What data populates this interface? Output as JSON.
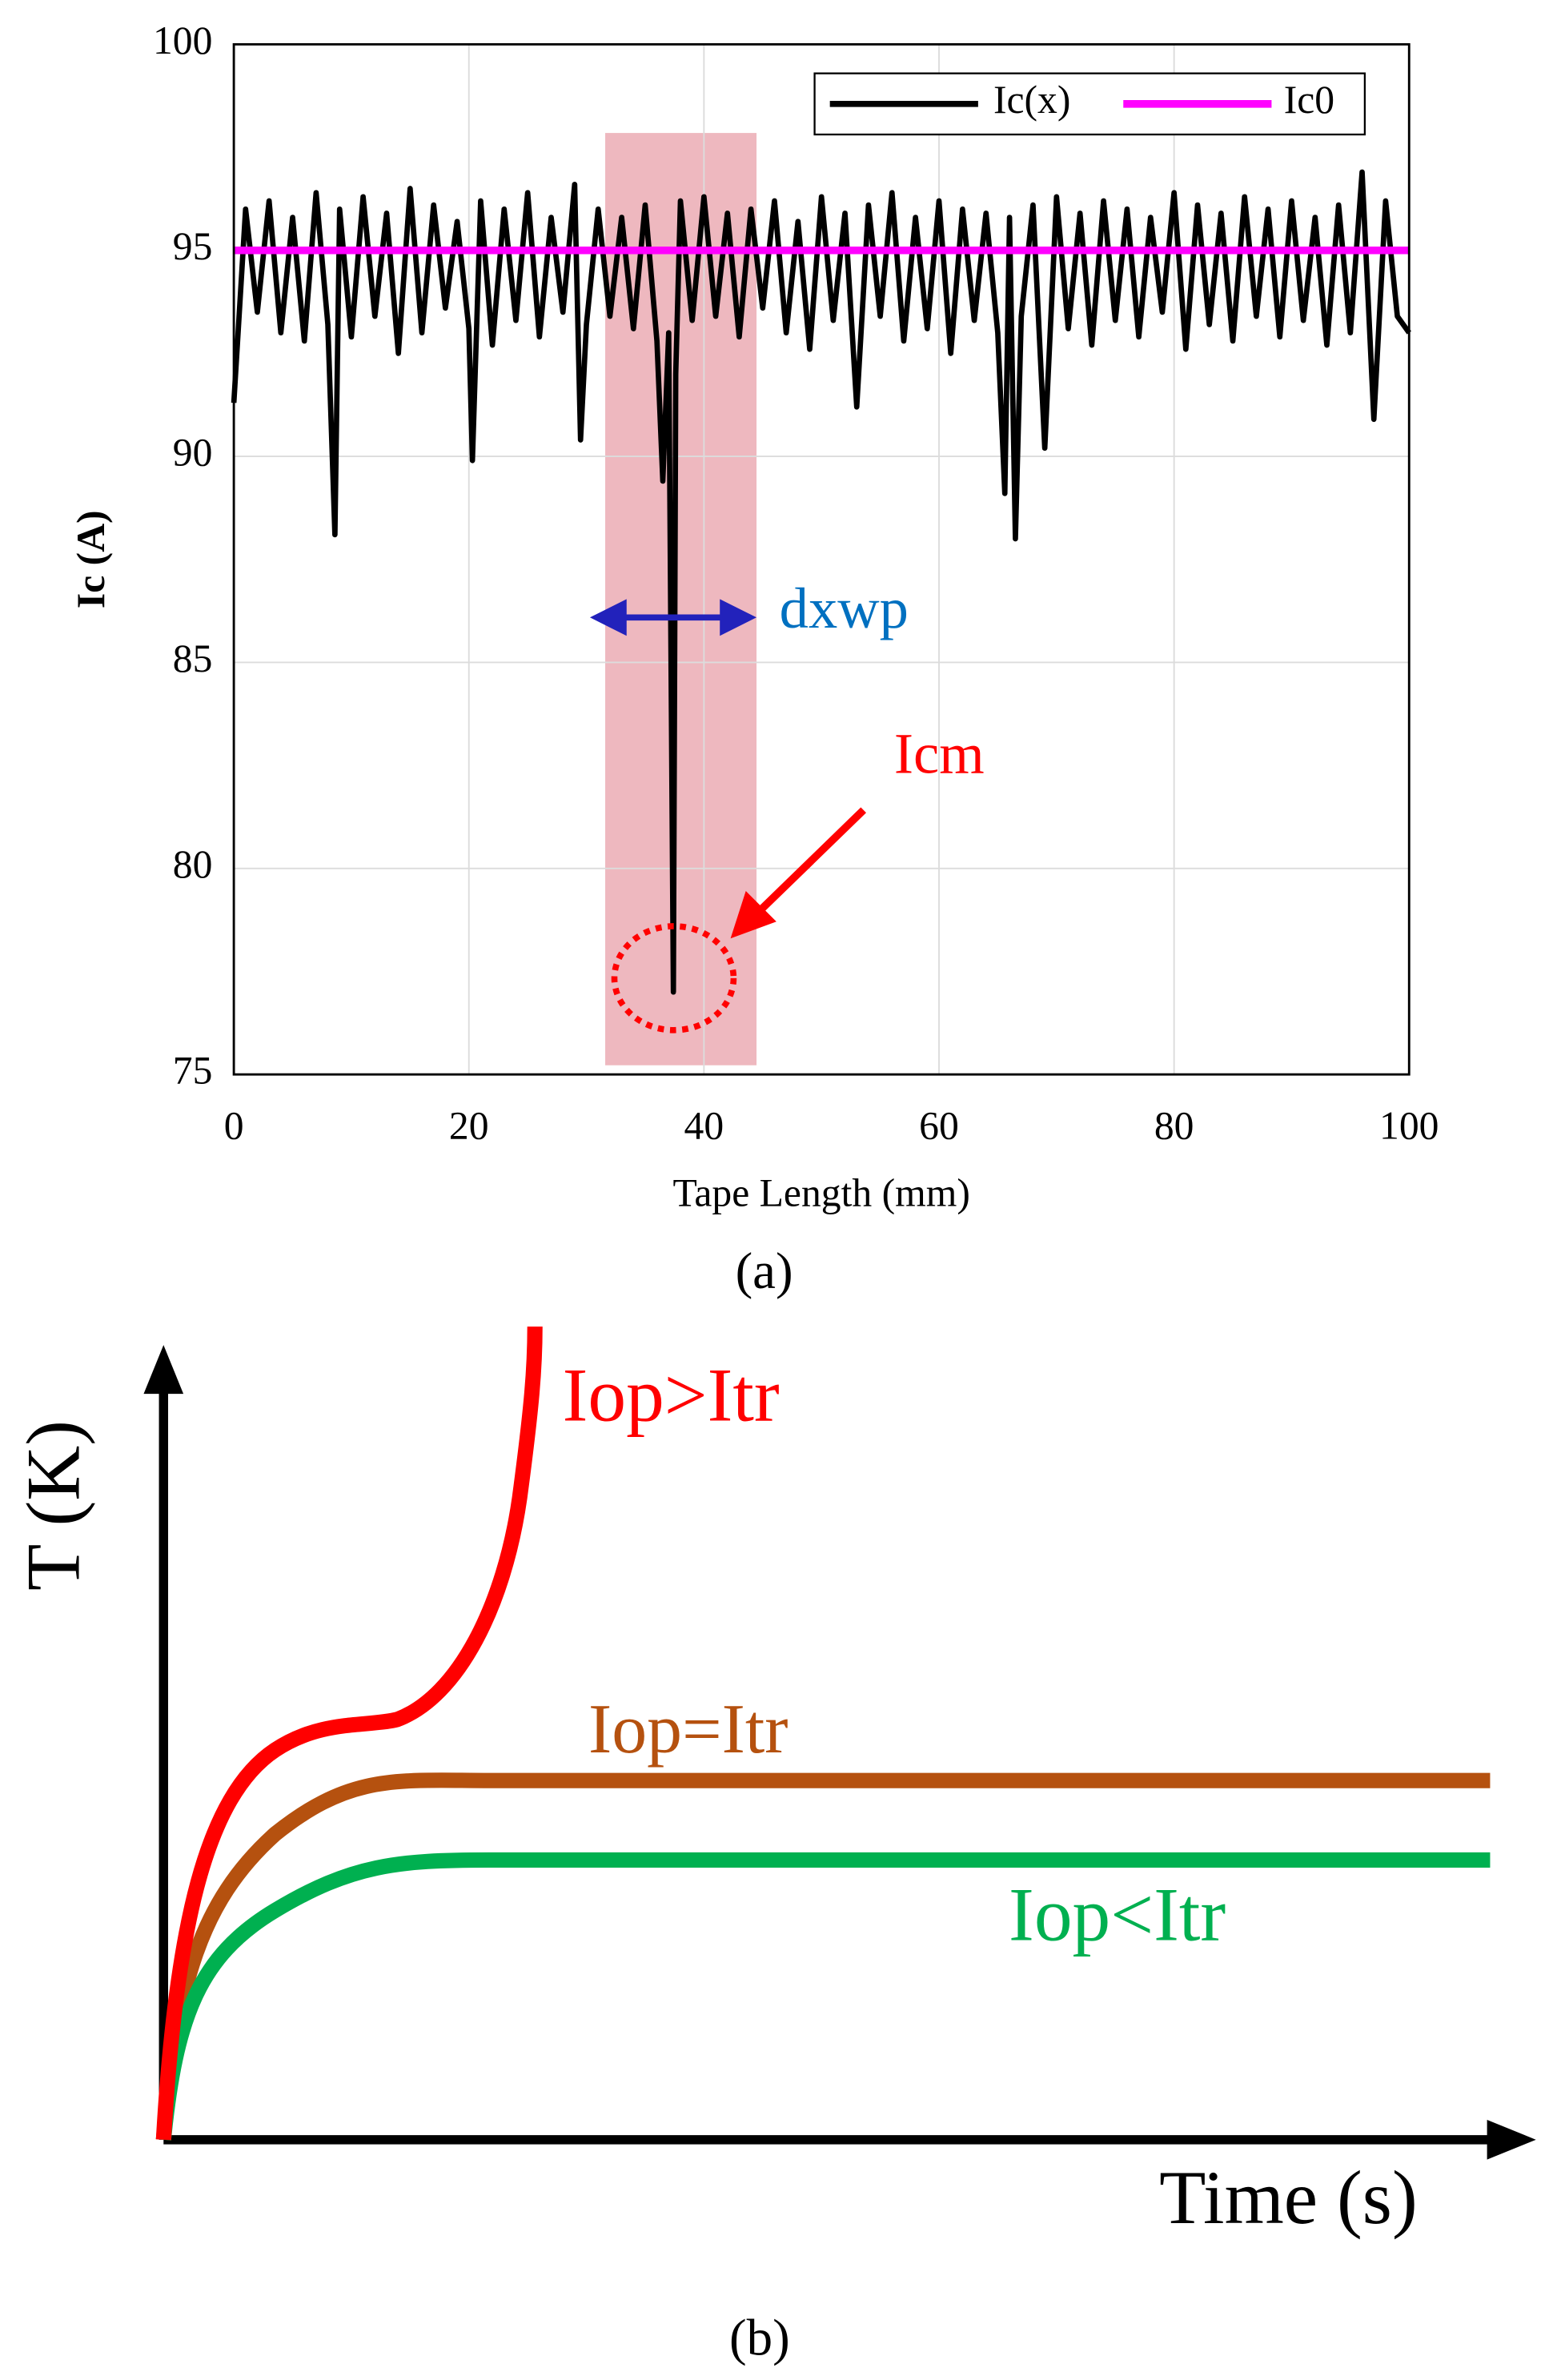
{
  "chart_data": {
    "type": "line",
    "xlabel": "Tape Length (mm)",
    "ylabel": "Ic (A)",
    "xlim": [
      0,
      100
    ],
    "ylim": [
      75,
      100
    ],
    "xticks": [
      0,
      20,
      40,
      60,
      80,
      100
    ],
    "yticks": [
      75,
      80,
      85,
      90,
      95,
      100
    ],
    "grid": true,
    "legend": "top-right",
    "series": [
      {
        "name": "Ic(x)",
        "color": "#000000",
        "x": [
          0,
          1,
          2,
          3,
          4,
          5,
          6,
          7,
          8,
          8.6,
          9,
          10,
          11,
          12,
          13,
          14,
          15,
          16,
          17,
          18,
          19,
          20,
          20.3,
          21,
          22,
          23,
          24,
          25,
          26,
          27,
          28,
          29,
          29.5,
          30,
          31,
          32,
          33,
          34,
          35,
          36,
          36.5,
          37,
          37.4,
          37.6,
          38,
          39,
          40,
          41,
          42,
          43,
          44,
          45,
          46,
          47,
          48,
          49,
          50,
          51,
          52,
          53,
          54,
          55,
          56,
          57,
          58,
          59,
          60,
          61,
          62,
          63,
          64,
          65,
          65.6,
          66,
          66.5,
          67,
          68,
          69,
          70,
          71,
          72,
          73,
          74,
          75,
          76,
          77,
          78,
          79,
          80,
          81,
          82,
          83,
          84,
          85,
          86,
          87,
          88,
          89,
          90,
          91,
          92,
          93,
          94,
          95,
          96,
          97,
          98,
          99,
          100
        ],
        "values": [
          91.3,
          96,
          93.5,
          96.2,
          93,
          95.8,
          92.8,
          96.4,
          93.2,
          88.1,
          96,
          92.9,
          96.3,
          93.4,
          95.9,
          92.5,
          96.5,
          93,
          96.1,
          93.6,
          95.7,
          93.1,
          89.9,
          96.2,
          92.7,
          96,
          93.3,
          96.4,
          92.9,
          95.8,
          93.5,
          96.6,
          90.4,
          93.2,
          96,
          93.4,
          95.8,
          93.1,
          96.1,
          92.8,
          89.4,
          93,
          77,
          92,
          96.2,
          93.3,
          96.3,
          93.4,
          95.9,
          92.9,
          96,
          93.6,
          96.2,
          93,
          95.7,
          92.6,
          96.3,
          93.3,
          95.9,
          91.2,
          96.1,
          93.4,
          96.4,
          92.8,
          95.8,
          93.1,
          96.2,
          92.5,
          96,
          93.3,
          95.9,
          93,
          89.1,
          95.8,
          88,
          93.4,
          96.1,
          90.2,
          96.3,
          93.1,
          95.9,
          92.7,
          96.2,
          93.3,
          96,
          92.9,
          95.8,
          93.5,
          96.4,
          92.6,
          96.1,
          93.2,
          95.9,
          92.8,
          96.3,
          93.4,
          96,
          92.9,
          96.2,
          93.3,
          95.8,
          92.7,
          96.1,
          93,
          96.9,
          90.9,
          96.2,
          93.4,
          93
        ]
      },
      {
        "name": "Ic0",
        "color": "#ff00ff",
        "x": [
          0,
          100
        ],
        "values": [
          95,
          95
        ]
      }
    ],
    "annotations": [
      "dxwp",
      "Icm"
    ],
    "caption": "(a)"
  },
  "figure_b": {
    "ylabel": "T (K)",
    "xlabel": "Time (s)",
    "curve_labels": [
      "Iop>Itr",
      "Iop=Itr",
      "Iop<Itr"
    ],
    "caption": "(b)"
  }
}
